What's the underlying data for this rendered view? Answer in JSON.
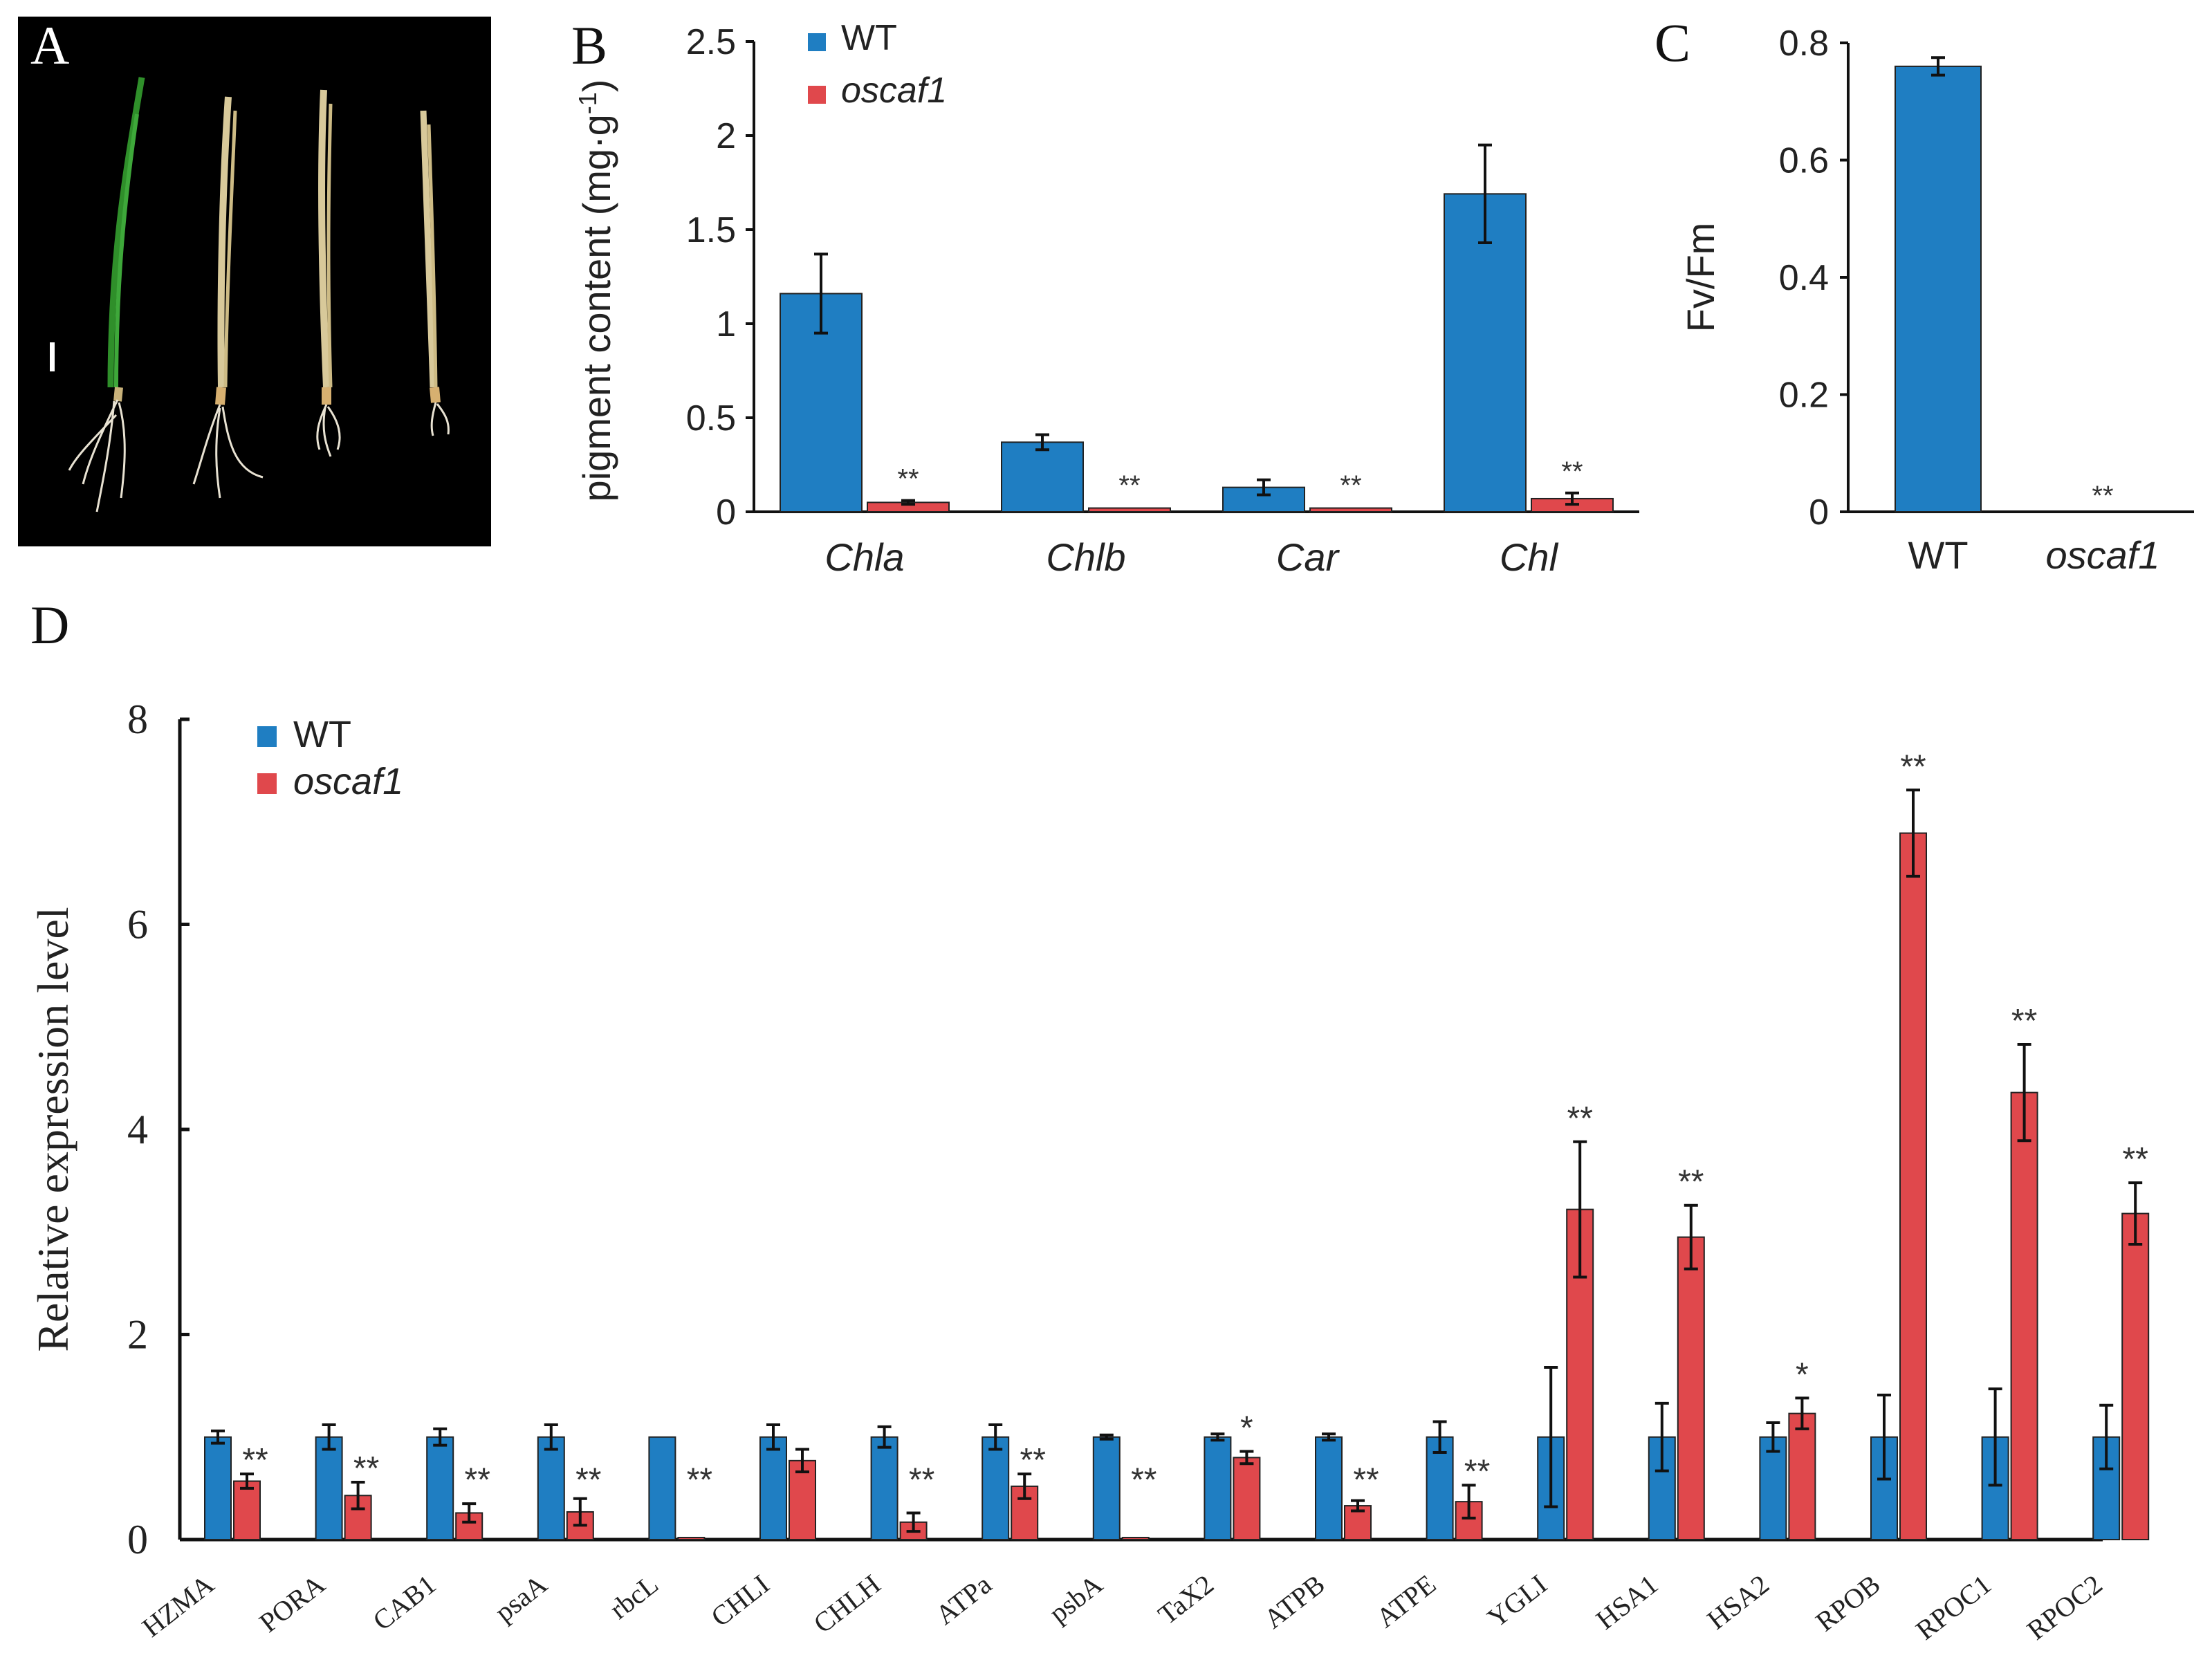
{
  "colors": {
    "wt": "#1f7ec2",
    "mutant": "#e0484c",
    "axis": "#111111",
    "photo_bg": "#000000"
  },
  "panels": {
    "a": {
      "letter": "A"
    },
    "b": {
      "letter": "B"
    },
    "c": {
      "letter": "C"
    },
    "d": {
      "letter": "D"
    }
  },
  "chart_data": [
    {
      "id": "B",
      "type": "bar",
      "title": "",
      "ylabel": "pigment content (mg·g",
      "ylabel_sup": "-1",
      "ylabel_close": ")",
      "xlabel": "",
      "ylim": [
        0,
        2.5
      ],
      "yticks": [
        0,
        0.5,
        1,
        1.5,
        2,
        2.5
      ],
      "ytick_labels": [
        "0",
        "0.5",
        "1",
        "1.5",
        "2",
        "2.5"
      ],
      "categories": [
        "Chla",
        "Chlb",
        "Car",
        "Chl"
      ],
      "legend": [
        "WT",
        "oscaf1"
      ],
      "legend_position": "top-left",
      "series": [
        {
          "name": "WT",
          "values": [
            1.16,
            0.37,
            0.13,
            1.69
          ],
          "errors": [
            0.21,
            0.04,
            0.04,
            0.26
          ]
        },
        {
          "name": "oscaf1",
          "values": [
            0.05,
            0.02,
            0.02,
            0.07
          ],
          "errors": [
            0.01,
            0.005,
            0.005,
            0.03
          ]
        }
      ],
      "annotations": [
        "**",
        "**",
        "**",
        "**"
      ]
    },
    {
      "id": "C",
      "type": "bar",
      "title": "",
      "ylabel": "Fv/Fm",
      "xlabel": "",
      "ylim": [
        0,
        0.8
      ],
      "yticks": [
        0,
        0.2,
        0.4,
        0.6,
        0.8
      ],
      "ytick_labels": [
        "0",
        "0.2",
        "0.4",
        "0.6",
        "0.8"
      ],
      "categories": [
        "WT",
        "oscaf1"
      ],
      "values": [
        0.76,
        0.0
      ],
      "errors": [
        0.015,
        0
      ],
      "annotations": [
        "",
        "**"
      ]
    },
    {
      "id": "D",
      "type": "bar",
      "title": "",
      "ylabel": "Relative expression level",
      "xlabel": "",
      "ylim": [
        0,
        8
      ],
      "yticks": [
        0,
        2,
        4,
        6,
        8
      ],
      "ytick_labels": [
        "0",
        "2",
        "4",
        "6",
        "8"
      ],
      "categories": [
        "HZMA",
        "PORA",
        "CAB1",
        "psaA",
        "rbcL",
        "CHLI",
        "CHLH",
        "ATPa",
        "psbA",
        "TaX2",
        "ATPB",
        "ATPE",
        "YGLI",
        "HSA1",
        "HSA2",
        "RPOB",
        "RPOC1",
        "RPOC2"
      ],
      "legend": [
        "WT",
        "oscaf1"
      ],
      "legend_position": "top-left",
      "series": [
        {
          "name": "WT",
          "values": [
            1,
            1,
            1,
            1,
            1,
            1,
            1,
            1,
            1,
            1,
            1,
            1,
            1,
            1,
            1,
            1,
            1,
            1
          ],
          "errors": [
            0.06,
            0.12,
            0.08,
            0.12,
            0,
            0.12,
            0.1,
            0.12,
            0.02,
            0.03,
            0.03,
            0.15,
            0.68,
            0.33,
            0.14,
            0.41,
            0.47,
            0.31
          ]
        },
        {
          "name": "oscaf1",
          "values": [
            0.57,
            0.43,
            0.26,
            0.27,
            0.02,
            0.77,
            0.17,
            0.52,
            0.02,
            0.8,
            0.33,
            0.37,
            3.22,
            2.95,
            1.23,
            6.89,
            4.36,
            3.18
          ],
          "errors": [
            0.07,
            0.13,
            0.09,
            0.13,
            0.01,
            0.11,
            0.09,
            0.12,
            0.01,
            0.06,
            0.05,
            0.16,
            0.66,
            0.31,
            0.15,
            0.42,
            0.47,
            0.3
          ]
        }
      ],
      "annotations": [
        "**",
        "**",
        "**",
        "**",
        "**",
        "",
        "**",
        "**",
        "**",
        "*",
        "**",
        "**",
        "**",
        "**",
        "*",
        "**",
        "**",
        "**"
      ]
    }
  ]
}
